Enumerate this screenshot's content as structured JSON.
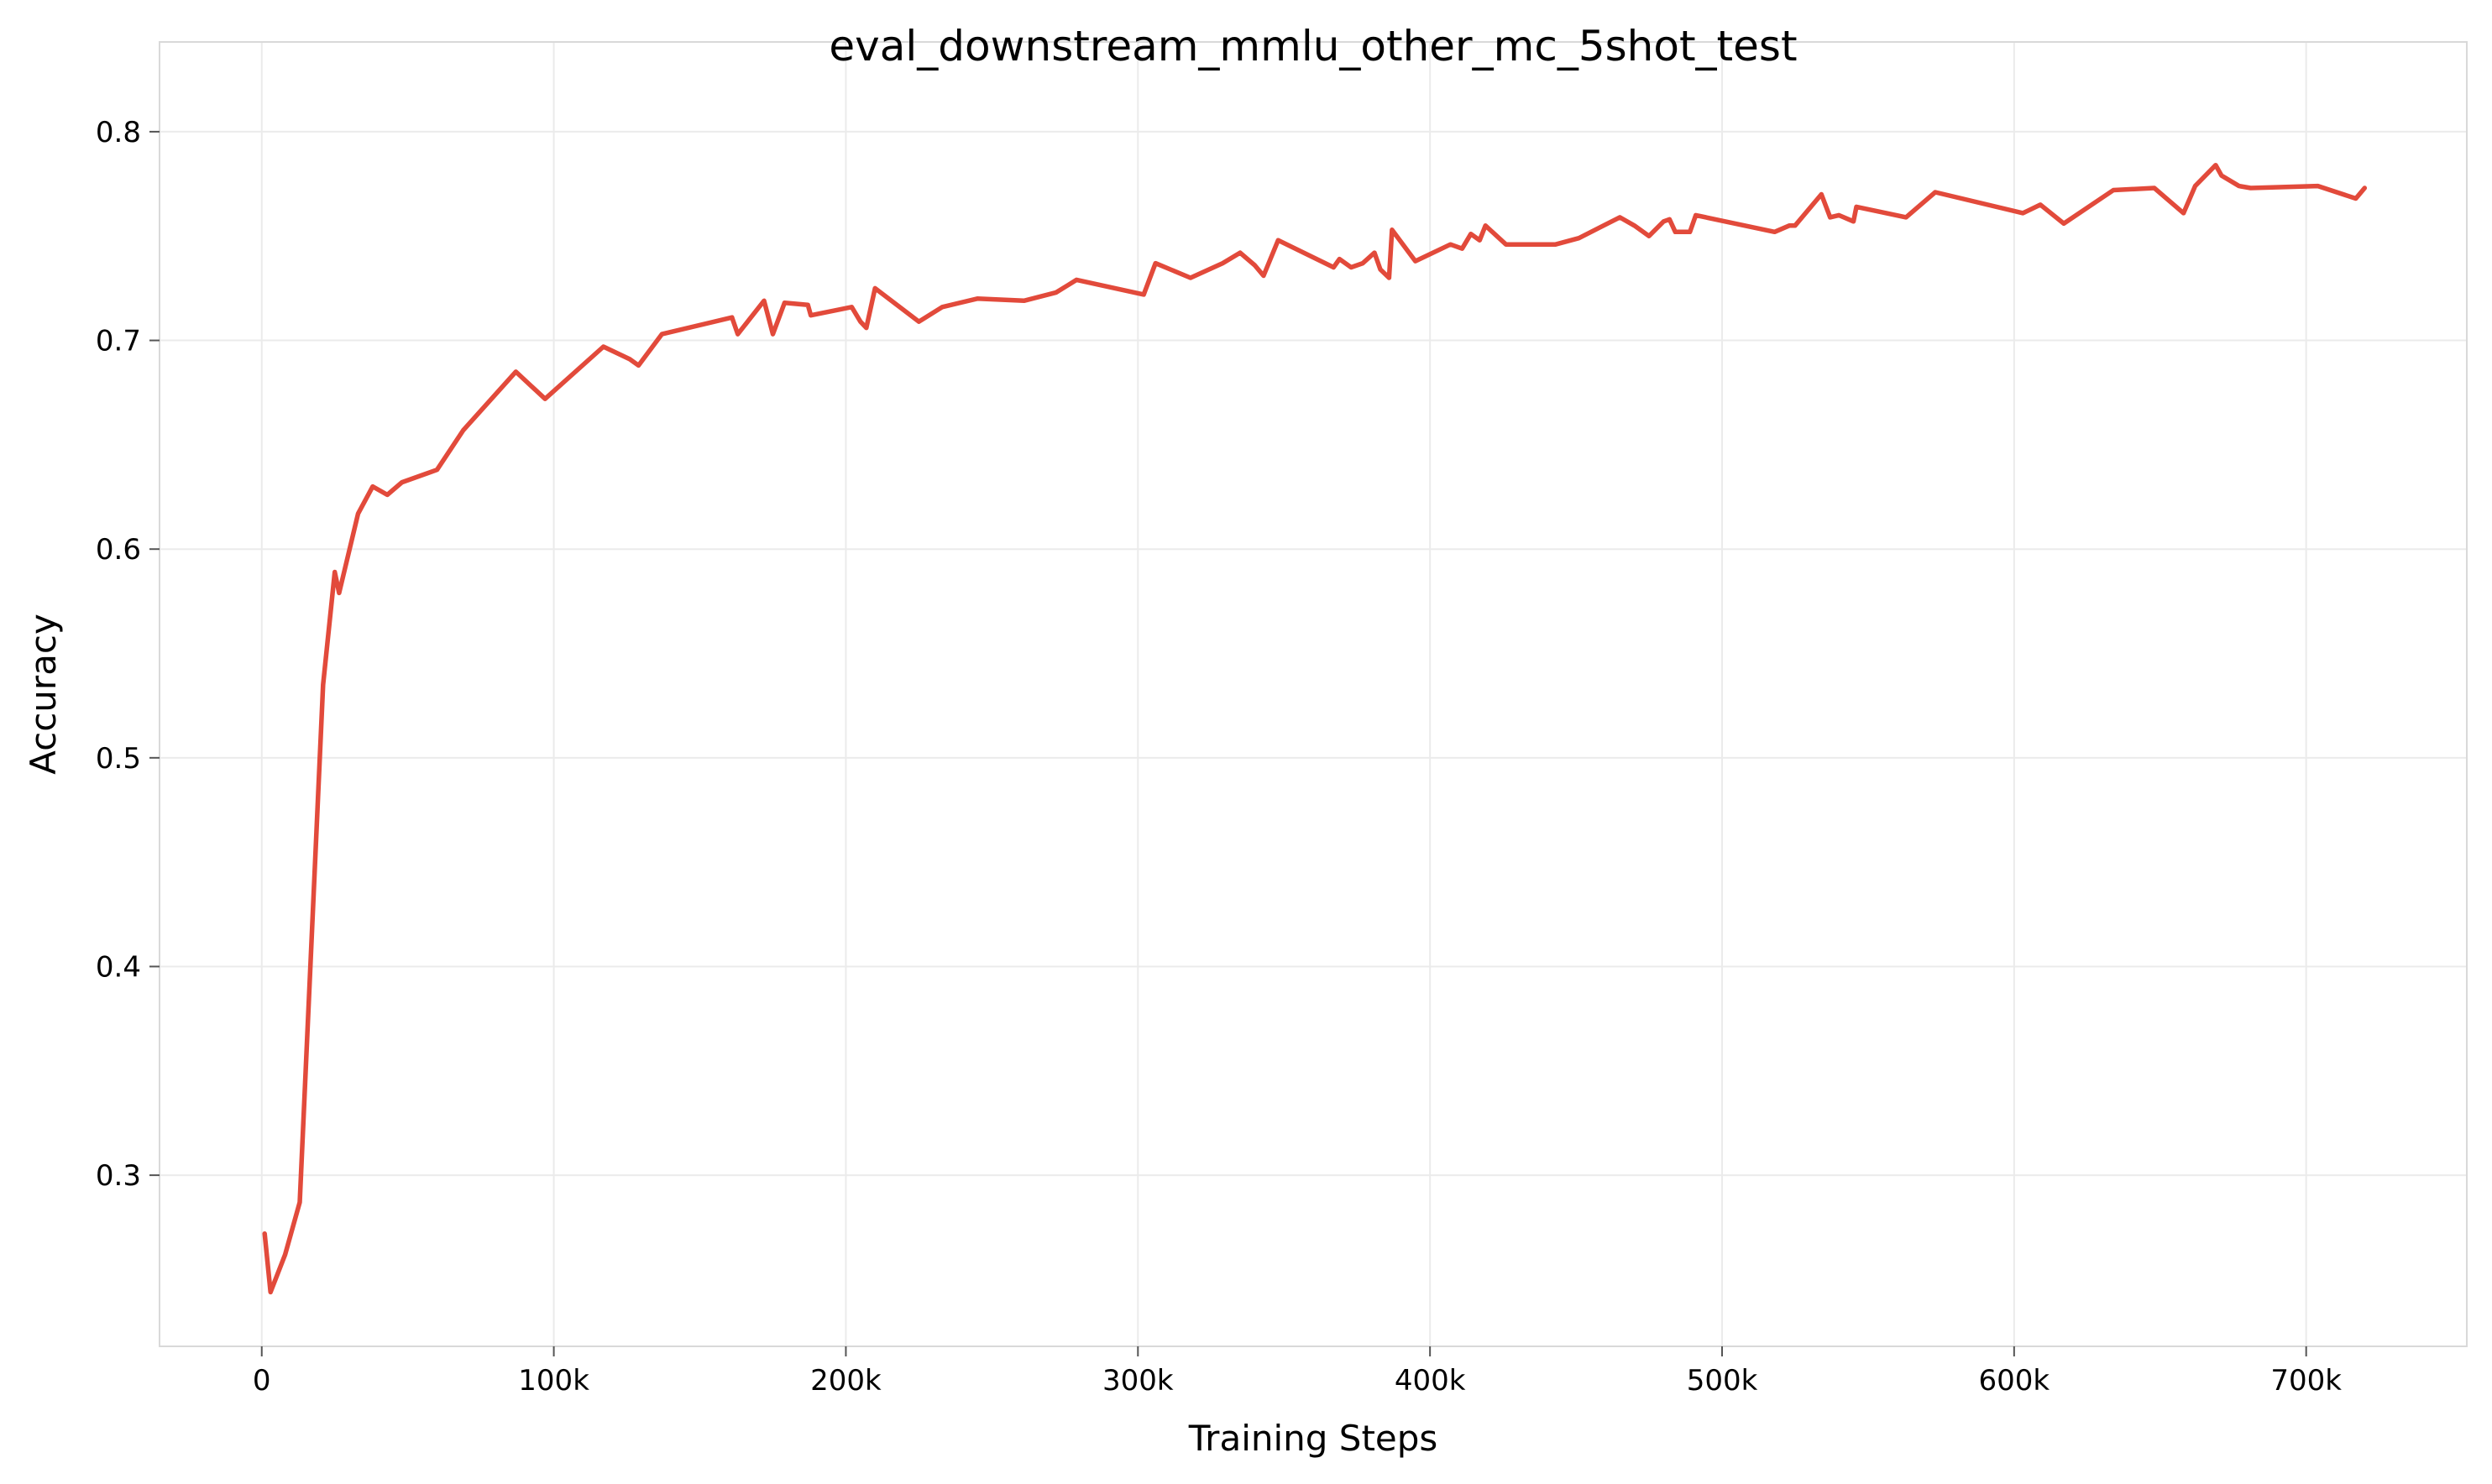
{
  "chart_data": {
    "type": "line",
    "title": "eval_downstream_mmlu_other_mc_5shot_test",
    "xlabel": "Training Steps",
    "ylabel": "Accuracy",
    "xlim": [
      -35000,
      755000
    ],
    "ylim": [
      0.218,
      0.843
    ],
    "x_ticks": [
      0,
      100000,
      200000,
      300000,
      400000,
      500000,
      600000,
      700000
    ],
    "x_tick_labels": [
      "0",
      "100k",
      "200k",
      "300k",
      "400k",
      "500k",
      "600k",
      "700k"
    ],
    "y_ticks": [
      0.3,
      0.4,
      0.5,
      0.6,
      0.7,
      0.8
    ],
    "y_tick_labels": [
      "0.3",
      "0.4",
      "0.5",
      "0.6",
      "0.7",
      "0.8"
    ],
    "grid": true,
    "line_color": "#e24a3b",
    "series": [
      {
        "x": [
          1000,
          3000,
          8000,
          13000,
          21000,
          25000,
          26500,
          33000,
          38000,
          43000,
          48000,
          60000,
          69000,
          87000,
          97000,
          117000,
          126000,
          129000,
          137000,
          161000,
          163000,
          172000,
          175000,
          179000,
          187000,
          188000,
          202000,
          205000,
          207000,
          210000,
          225000,
          233000,
          245000,
          261000,
          272000,
          279000,
          302000,
          306000,
          318000,
          329000,
          335000,
          340000,
          343000,
          348000,
          367000,
          369000,
          373000,
          377000,
          381000,
          383000,
          386000,
          387000,
          395000,
          407000,
          411000,
          414000,
          417000,
          419000,
          426000,
          443000,
          451000,
          465000,
          470000,
          475000,
          480000,
          482000,
          484000,
          489000,
          491000,
          518000,
          523000,
          525000,
          534000,
          537000,
          540000,
          545000,
          546000,
          563000,
          573000,
          603000,
          609000,
          617000,
          634000,
          648000,
          658000,
          662000,
          669000,
          671000,
          677000,
          681000,
          704000,
          717000,
          720000
        ],
        "y": [
          0.272,
          0.244,
          0.262,
          0.287,
          0.535,
          0.589,
          0.579,
          0.617,
          0.63,
          0.626,
          0.632,
          0.638,
          0.657,
          0.685,
          0.672,
          0.697,
          0.691,
          0.688,
          0.703,
          0.711,
          0.703,
          0.719,
          0.703,
          0.718,
          0.717,
          0.712,
          0.716,
          0.709,
          0.706,
          0.725,
          0.709,
          0.716,
          0.72,
          0.719,
          0.723,
          0.729,
          0.722,
          0.737,
          0.73,
          0.737,
          0.742,
          0.736,
          0.731,
          0.748,
          0.735,
          0.739,
          0.735,
          0.737,
          0.742,
          0.734,
          0.73,
          0.753,
          0.738,
          0.746,
          0.744,
          0.751,
          0.748,
          0.755,
          0.746,
          0.746,
          0.749,
          0.759,
          0.755,
          0.75,
          0.757,
          0.758,
          0.752,
          0.752,
          0.76,
          0.752,
          0.755,
          0.755,
          0.77,
          0.759,
          0.76,
          0.757,
          0.764,
          0.759,
          0.771,
          0.761,
          0.765,
          0.756,
          0.772,
          0.773,
          0.761,
          0.774,
          0.784,
          0.779,
          0.774,
          0.773,
          0.774,
          0.768,
          0.773
        ]
      }
    ]
  }
}
